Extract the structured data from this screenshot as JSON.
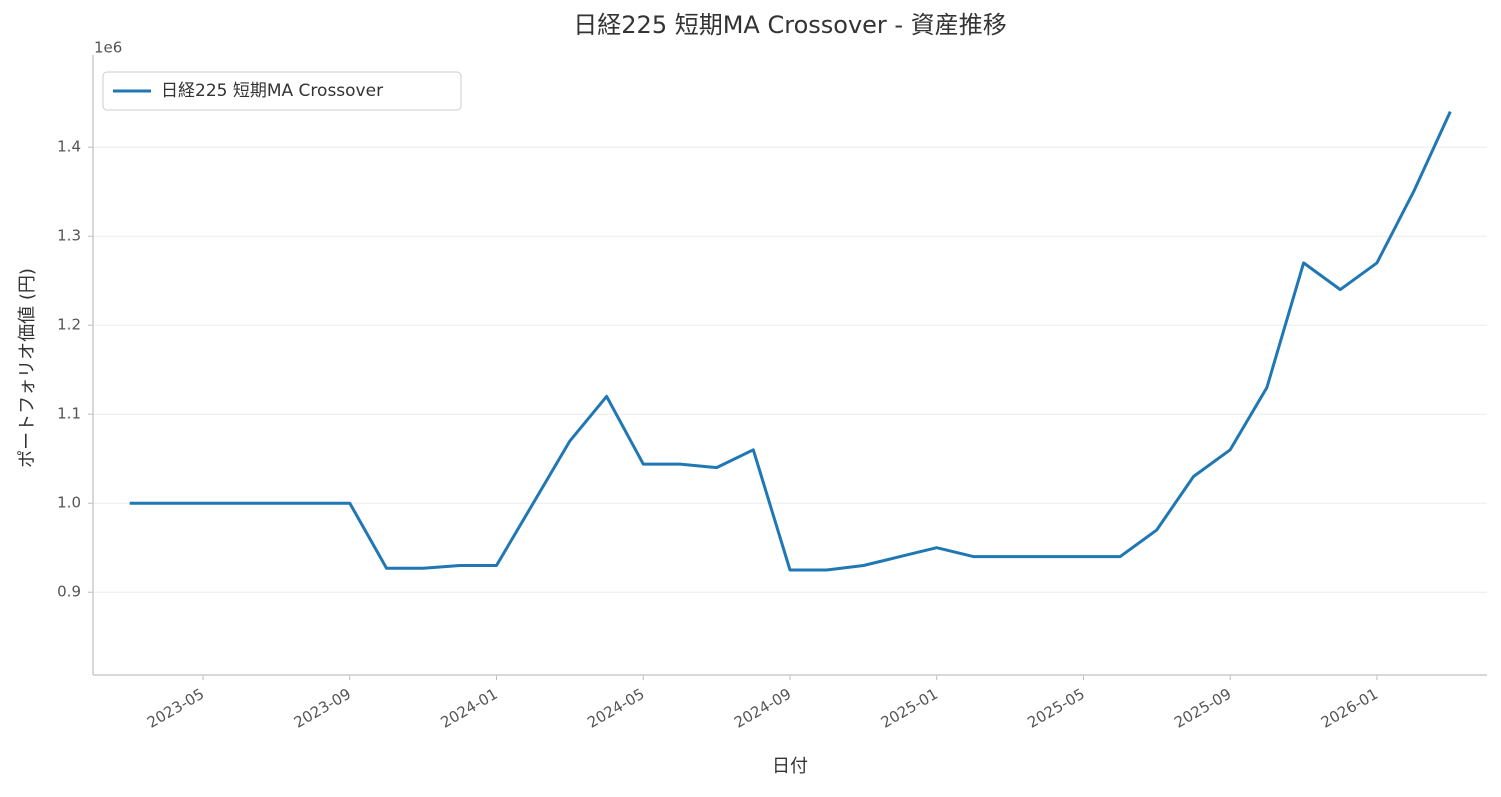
{
  "chart_data": {
    "type": "line",
    "title": "日経225 短期MA Crossover - 資産推移",
    "x_label": "日付",
    "y_label": "ポートフォリオ価値 (円)",
    "y_offset_text": "1e6",
    "x": [
      "2023-03",
      "2023-04",
      "2023-05",
      "2023-06",
      "2023-07",
      "2023-08",
      "2023-09",
      "2023-10",
      "2023-11",
      "2023-12",
      "2024-01",
      "2024-02",
      "2024-03",
      "2024-04",
      "2024-05",
      "2024-06",
      "2024-07",
      "2024-08",
      "2024-09",
      "2024-10",
      "2024-11",
      "2024-12",
      "2025-01",
      "2025-02",
      "2025-03",
      "2025-04",
      "2025-05",
      "2025-06",
      "2025-07",
      "2025-08",
      "2025-09",
      "2025-10",
      "2025-11",
      "2025-12",
      "2026-01",
      "2026-02",
      "2026-03"
    ],
    "series": [
      {
        "name": "日経225 短期MA Crossover",
        "color": "#1f77b4",
        "values": [
          1.0,
          1.0,
          1.0,
          1.0,
          1.0,
          1.0,
          1.0,
          0.927,
          0.927,
          0.93,
          0.93,
          1.0,
          1.07,
          1.12,
          1.044,
          1.044,
          1.04,
          1.06,
          0.925,
          0.925,
          0.93,
          0.94,
          0.95,
          0.94,
          0.94,
          0.94,
          0.94,
          0.94,
          0.97,
          1.03,
          1.06,
          1.13,
          1.27,
          1.24,
          1.27,
          1.35,
          1.44
        ]
      }
    ],
    "xlim": [
      "2023-02",
      "2026-04"
    ],
    "xticks": [
      "2023-05",
      "2023-09",
      "2024-01",
      "2024-05",
      "2024-09",
      "2025-01",
      "2025-05",
      "2025-09",
      "2026-01"
    ],
    "ylim": [
      0.807,
      1.498
    ],
    "yticks": [
      0.9,
      {
        "value": 1.0,
        "label": "1.0"
      },
      1.1,
      1.2,
      1.3,
      1.4
    ],
    "grid": true,
    "legend": "upper-left"
  }
}
